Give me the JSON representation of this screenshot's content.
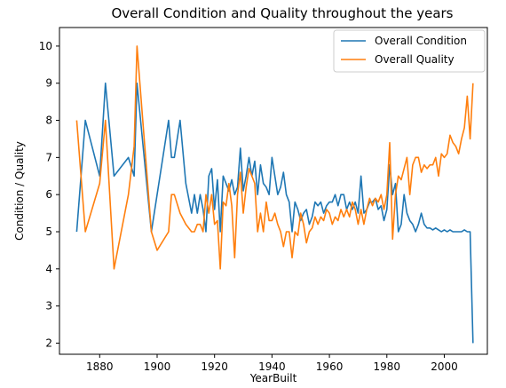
{
  "chart_data": {
    "type": "line",
    "title": "Overall Condition and Quality throughout the years",
    "xlabel": "YearBuilt",
    "ylabel": "Condition / Quality",
    "xlim": [
      1866,
      2015
    ],
    "ylim": [
      1.7,
      10.5
    ],
    "xticks": [
      "1880",
      "1900",
      "1920",
      "1940",
      "1960",
      "1980",
      "2000"
    ],
    "yticks": [
      "2",
      "3",
      "4",
      "5",
      "6",
      "7",
      "8",
      "9",
      "10"
    ],
    "grid": false,
    "legend_position": "top-right",
    "series": [
      {
        "name": "Overall Condition",
        "color": "#1f77b4",
        "points": [
          [
            1872,
            5.0
          ],
          [
            1875,
            8.0
          ],
          [
            1880,
            6.5
          ],
          [
            1882,
            9.0
          ],
          [
            1885,
            6.5
          ],
          [
            1890,
            7.0
          ],
          [
            1892,
            6.5
          ],
          [
            1893,
            9.0
          ],
          [
            1898,
            5.0
          ],
          [
            1900,
            6.0
          ],
          [
            1904,
            8.0
          ],
          [
            1905,
            7.0
          ],
          [
            1906,
            7.0
          ],
          [
            1908,
            8.0
          ],
          [
            1910,
            6.3
          ],
          [
            1912,
            5.5
          ],
          [
            1913,
            6.0
          ],
          [
            1914,
            5.5
          ],
          [
            1915,
            6.0
          ],
          [
            1916,
            5.6
          ],
          [
            1917,
            5.0
          ],
          [
            1918,
            6.5
          ],
          [
            1919,
            6.7
          ],
          [
            1920,
            5.6
          ],
          [
            1921,
            6.4
          ],
          [
            1922,
            5.0
          ],
          [
            1923,
            6.5
          ],
          [
            1924,
            6.3
          ],
          [
            1925,
            6.1
          ],
          [
            1926,
            6.4
          ],
          [
            1927,
            6.0
          ],
          [
            1928,
            6.2
          ],
          [
            1929,
            7.25
          ],
          [
            1930,
            6.1
          ],
          [
            1931,
            6.5
          ],
          [
            1932,
            7.0
          ],
          [
            1933,
            6.5
          ],
          [
            1934,
            6.9
          ],
          [
            1935,
            6.0
          ],
          [
            1936,
            6.8
          ],
          [
            1937,
            6.3
          ],
          [
            1938,
            6.2
          ],
          [
            1939,
            6.0
          ],
          [
            1940,
            7.0
          ],
          [
            1941,
            6.5
          ],
          [
            1942,
            6.0
          ],
          [
            1943,
            6.2
          ],
          [
            1944,
            6.6
          ],
          [
            1945,
            6.0
          ],
          [
            1946,
            5.8
          ],
          [
            1947,
            5.0
          ],
          [
            1948,
            5.8
          ],
          [
            1949,
            5.6
          ],
          [
            1950,
            5.3
          ],
          [
            1951,
            5.5
          ],
          [
            1952,
            5.6
          ],
          [
            1953,
            5.2
          ],
          [
            1954,
            5.4
          ],
          [
            1955,
            5.8
          ],
          [
            1956,
            5.7
          ],
          [
            1957,
            5.8
          ],
          [
            1958,
            5.5
          ],
          [
            1959,
            5.7
          ],
          [
            1960,
            5.8
          ],
          [
            1961,
            5.8
          ],
          [
            1962,
            6.0
          ],
          [
            1963,
            5.7
          ],
          [
            1964,
            6.0
          ],
          [
            1965,
            6.0
          ],
          [
            1966,
            5.6
          ],
          [
            1967,
            5.8
          ],
          [
            1968,
            5.6
          ],
          [
            1969,
            5.8
          ],
          [
            1970,
            5.5
          ],
          [
            1971,
            6.5
          ],
          [
            1972,
            5.5
          ],
          [
            1973,
            5.6
          ],
          [
            1974,
            5.8
          ],
          [
            1975,
            5.8
          ],
          [
            1976,
            5.9
          ],
          [
            1977,
            5.6
          ],
          [
            1978,
            5.7
          ],
          [
            1979,
            5.3
          ],
          [
            1980,
            5.6
          ],
          [
            1981,
            6.8
          ],
          [
            1982,
            6.0
          ],
          [
            1983,
            6.3
          ],
          [
            1984,
            5.0
          ],
          [
            1985,
            5.2
          ],
          [
            1986,
            6.0
          ],
          [
            1987,
            5.5
          ],
          [
            1988,
            5.3
          ],
          [
            1989,
            5.2
          ],
          [
            1990,
            5.0
          ],
          [
            1991,
            5.2
          ],
          [
            1992,
            5.5
          ],
          [
            1993,
            5.2
          ],
          [
            1994,
            5.1
          ],
          [
            1995,
            5.1
          ],
          [
            1996,
            5.05
          ],
          [
            1997,
            5.1
          ],
          [
            1998,
            5.05
          ],
          [
            1999,
            5.0
          ],
          [
            2000,
            5.05
          ],
          [
            2001,
            5.0
          ],
          [
            2002,
            5.05
          ],
          [
            2003,
            5.0
          ],
          [
            2004,
            5.0
          ],
          [
            2005,
            5.0
          ],
          [
            2006,
            5.0
          ],
          [
            2007,
            5.05
          ],
          [
            2008,
            5.0
          ],
          [
            2009,
            5.0
          ],
          [
            2010,
            2.0
          ]
        ]
      },
      {
        "name": "Overall Quality",
        "color": "#ff7f0e",
        "points": [
          [
            1872,
            8.0
          ],
          [
            1875,
            5.0
          ],
          [
            1880,
            6.3
          ],
          [
            1882,
            8.0
          ],
          [
            1885,
            4.0
          ],
          [
            1890,
            6.0
          ],
          [
            1892,
            7.3
          ],
          [
            1893,
            10.0
          ],
          [
            1898,
            5.0
          ],
          [
            1900,
            4.5
          ],
          [
            1904,
            5.0
          ],
          [
            1905,
            6.0
          ],
          [
            1906,
            6.0
          ],
          [
            1908,
            5.5
          ],
          [
            1910,
            5.2
          ],
          [
            1912,
            5.0
          ],
          [
            1913,
            5.0
          ],
          [
            1914,
            5.2
          ],
          [
            1915,
            5.2
          ],
          [
            1916,
            5.0
          ],
          [
            1917,
            6.0
          ],
          [
            1918,
            5.5
          ],
          [
            1919,
            6.0
          ],
          [
            1920,
            5.2
          ],
          [
            1921,
            5.3
          ],
          [
            1922,
            4.0
          ],
          [
            1923,
            5.8
          ],
          [
            1924,
            5.7
          ],
          [
            1925,
            6.3
          ],
          [
            1926,
            5.7
          ],
          [
            1927,
            4.3
          ],
          [
            1928,
            6.0
          ],
          [
            1929,
            6.6
          ],
          [
            1930,
            5.5
          ],
          [
            1931,
            6.2
          ],
          [
            1932,
            6.7
          ],
          [
            1933,
            6.5
          ],
          [
            1934,
            6.3
          ],
          [
            1935,
            5.0
          ],
          [
            1936,
            5.5
          ],
          [
            1937,
            5.0
          ],
          [
            1938,
            5.8
          ],
          [
            1939,
            5.3
          ],
          [
            1940,
            5.3
          ],
          [
            1941,
            5.5
          ],
          [
            1942,
            5.2
          ],
          [
            1943,
            5.0
          ],
          [
            1944,
            4.6
          ],
          [
            1945,
            5.0
          ],
          [
            1946,
            5.0
          ],
          [
            1947,
            4.3
          ],
          [
            1948,
            5.0
          ],
          [
            1949,
            4.9
          ],
          [
            1950,
            5.5
          ],
          [
            1951,
            5.2
          ],
          [
            1952,
            4.7
          ],
          [
            1953,
            5.0
          ],
          [
            1954,
            5.1
          ],
          [
            1955,
            5.4
          ],
          [
            1956,
            5.2
          ],
          [
            1957,
            5.4
          ],
          [
            1958,
            5.3
          ],
          [
            1959,
            5.6
          ],
          [
            1960,
            5.5
          ],
          [
            1961,
            5.2
          ],
          [
            1962,
            5.4
          ],
          [
            1963,
            5.3
          ],
          [
            1964,
            5.6
          ],
          [
            1965,
            5.4
          ],
          [
            1966,
            5.6
          ],
          [
            1967,
            5.4
          ],
          [
            1968,
            5.8
          ],
          [
            1969,
            5.6
          ],
          [
            1970,
            5.2
          ],
          [
            1971,
            5.6
          ],
          [
            1972,
            5.2
          ],
          [
            1973,
            5.6
          ],
          [
            1974,
            5.9
          ],
          [
            1975,
            5.7
          ],
          [
            1976,
            5.9
          ],
          [
            1977,
            5.8
          ],
          [
            1978,
            6.0
          ],
          [
            1979,
            5.6
          ],
          [
            1980,
            6.0
          ],
          [
            1981,
            7.4
          ],
          [
            1982,
            4.8
          ],
          [
            1983,
            6.0
          ],
          [
            1984,
            6.5
          ],
          [
            1985,
            6.4
          ],
          [
            1986,
            6.7
          ],
          [
            1987,
            7.0
          ],
          [
            1988,
            6.0
          ],
          [
            1989,
            6.8
          ],
          [
            1990,
            7.0
          ],
          [
            1991,
            7.0
          ],
          [
            1992,
            6.6
          ],
          [
            1993,
            6.8
          ],
          [
            1994,
            6.7
          ],
          [
            1995,
            6.8
          ],
          [
            1996,
            6.8
          ],
          [
            1997,
            7.0
          ],
          [
            1998,
            6.5
          ],
          [
            1999,
            7.1
          ],
          [
            2000,
            7.0
          ],
          [
            2001,
            7.1
          ],
          [
            2002,
            7.6
          ],
          [
            2003,
            7.4
          ],
          [
            2004,
            7.3
          ],
          [
            2005,
            7.1
          ],
          [
            2006,
            7.5
          ],
          [
            2007,
            7.8
          ],
          [
            2008,
            8.65
          ],
          [
            2009,
            7.5
          ],
          [
            2010,
            9.0
          ]
        ]
      }
    ]
  }
}
